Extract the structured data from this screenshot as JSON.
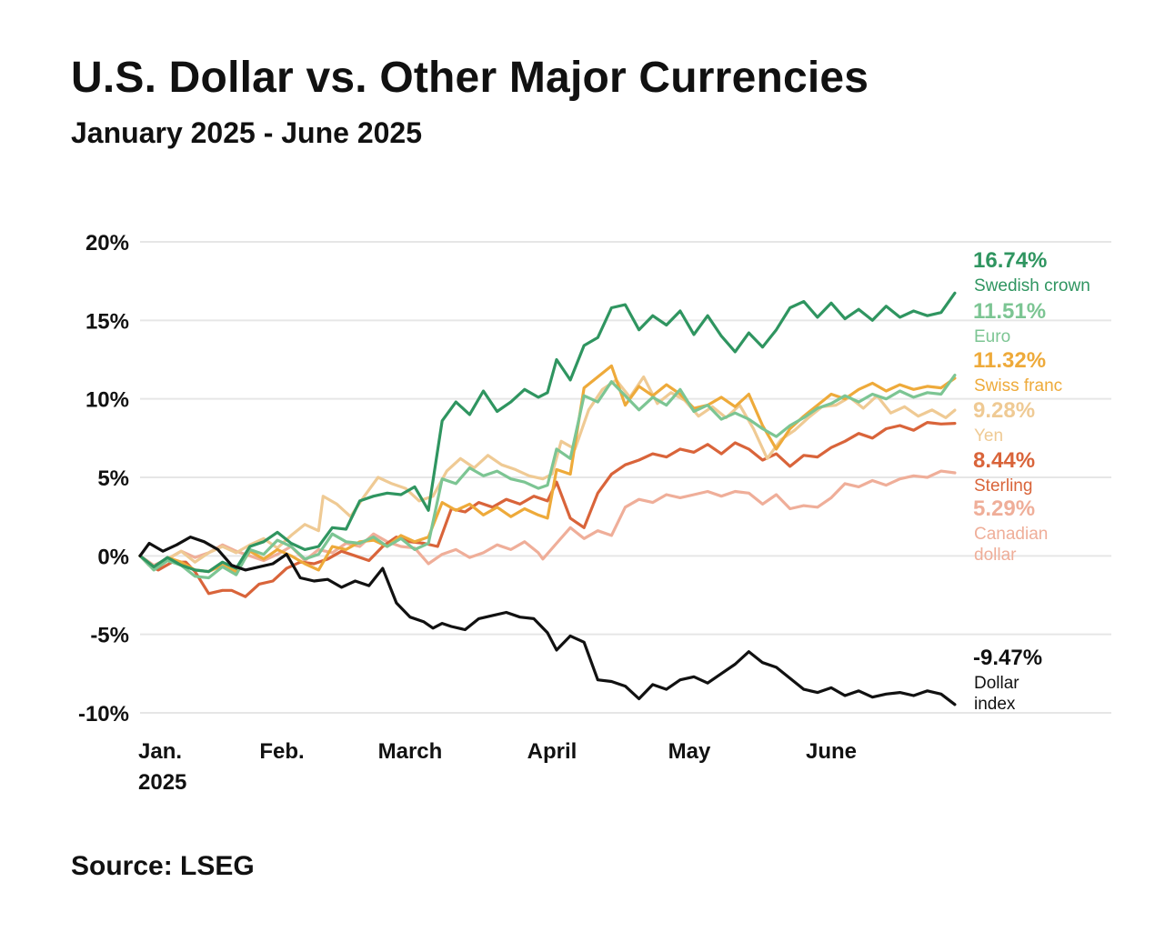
{
  "header": {
    "title": "U.S. Dollar vs. Other Major Currencies",
    "subtitle": "January 2025 - June 2025"
  },
  "footer": {
    "source": "Source: LSEG"
  },
  "chart_data": {
    "type": "line",
    "title": "U.S. Dollar vs. Other Major Currencies",
    "subtitle": "January 2025 - June 2025",
    "xlabel": "",
    "ylabel": "",
    "ylim": [
      -10,
      20
    ],
    "yticks": [
      20,
      15,
      10,
      5,
      0,
      -5,
      -10
    ],
    "ytick_labels": [
      "20%",
      "15%",
      "10%",
      "5%",
      "0%",
      "-5%",
      "-10%"
    ],
    "xlim": [
      0,
      180
    ],
    "xticks": [
      {
        "x": 0,
        "lines": [
          "Jan.",
          "2025"
        ]
      },
      {
        "x": 31,
        "lines": [
          "Feb."
        ]
      },
      {
        "x": 59,
        "lines": [
          "March"
        ]
      },
      {
        "x": 90,
        "lines": [
          "April"
        ]
      },
      {
        "x": 120,
        "lines": [
          "May"
        ]
      },
      {
        "x": 151,
        "lines": [
          "June"
        ]
      }
    ],
    "grid": true,
    "x_unit": "days since Jan. 1, 2025",
    "series": [
      {
        "name": "Canadian dollar",
        "name_lines": [
          "Canadian",
          "dollar"
        ],
        "end_label": "5.29%",
        "color": "#efae99",
        "x": [
          0,
          3,
          6,
          9,
          12,
          15,
          18,
          21,
          24,
          27,
          30,
          33,
          36,
          39,
          42,
          45,
          48,
          51,
          54,
          57,
          60,
          63,
          66,
          69,
          72,
          75,
          78,
          81,
          84,
          87,
          88,
          91,
          94,
          97,
          100,
          103,
          106,
          109,
          112,
          115,
          118,
          121,
          124,
          127,
          130,
          133,
          136,
          139,
          142,
          145,
          148,
          151,
          154,
          157,
          160,
          163,
          166,
          169,
          172,
          175,
          178
        ],
        "y": [
          0.0,
          -0.6,
          -0.2,
          0.3,
          -0.1,
          0.2,
          0.7,
          0.3,
          0.0,
          -0.3,
          0.1,
          0.6,
          -0.3,
          0.4,
          0.2,
          0.8,
          0.6,
          1.4,
          0.9,
          0.6,
          0.5,
          -0.5,
          0.1,
          0.4,
          -0.1,
          0.2,
          0.7,
          0.4,
          0.9,
          0.2,
          -0.2,
          0.8,
          1.8,
          1.1,
          1.6,
          1.3,
          3.1,
          3.6,
          3.4,
          3.9,
          3.7,
          3.9,
          4.1,
          3.8,
          4.1,
          4.0,
          3.3,
          3.9,
          3.0,
          3.2,
          3.1,
          3.7,
          4.6,
          4.4,
          4.8,
          4.5,
          4.9,
          5.1,
          5.0,
          5.4,
          5.29
        ]
      },
      {
        "name": "Sterling",
        "name_lines": [
          "Sterling"
        ],
        "end_label": "8.44%",
        "color": "#d9643a",
        "x": [
          0,
          2,
          4,
          7,
          10,
          12,
          15,
          18,
          20,
          23,
          26,
          29,
          32,
          35,
          38,
          41,
          44,
          47,
          50,
          53,
          56,
          59,
          62,
          65,
          68,
          71,
          74,
          77,
          80,
          83,
          86,
          89,
          91,
          94,
          97,
          100,
          103,
          106,
          109,
          112,
          115,
          118,
          121,
          124,
          127,
          130,
          133,
          136,
          139,
          142,
          145,
          148,
          151,
          154,
          157,
          160,
          163,
          166,
          169,
          172,
          175,
          178
        ],
        "y": [
          0.0,
          -0.6,
          -0.9,
          -0.4,
          -0.4,
          -1.0,
          -2.4,
          -2.2,
          -2.2,
          -2.6,
          -1.8,
          -1.6,
          -0.8,
          -0.4,
          -0.5,
          -0.2,
          0.3,
          0.0,
          -0.3,
          0.6,
          1.2,
          0.9,
          0.8,
          0.6,
          3.0,
          2.8,
          3.4,
          3.1,
          3.6,
          3.3,
          3.8,
          3.5,
          4.7,
          2.4,
          1.8,
          4.0,
          5.2,
          5.8,
          6.1,
          6.5,
          6.3,
          6.8,
          6.6,
          7.1,
          6.5,
          7.2,
          6.8,
          6.1,
          6.5,
          5.7,
          6.4,
          6.3,
          6.9,
          7.3,
          7.8,
          7.5,
          8.1,
          8.3,
          8.0,
          8.5,
          8.4,
          8.44
        ]
      },
      {
        "name": "Yen",
        "name_lines": [
          "Yen"
        ],
        "end_label": "9.28%",
        "color": "#efca94",
        "x": [
          0,
          3,
          6,
          9,
          12,
          15,
          18,
          21,
          24,
          27,
          30,
          33,
          36,
          39,
          40,
          43,
          46,
          49,
          52,
          55,
          58,
          61,
          64,
          67,
          70,
          73,
          76,
          79,
          82,
          85,
          88,
          90,
          92,
          95,
          98,
          101,
          104,
          107,
          110,
          113,
          116,
          119,
          122,
          125,
          128,
          131,
          134,
          137,
          140,
          143,
          146,
          149,
          152,
          155,
          158,
          161,
          164,
          167,
          170,
          173,
          176,
          178
        ],
        "y": [
          0.0,
          -0.7,
          -0.2,
          0.3,
          -0.4,
          0.2,
          0.6,
          0.2,
          0.7,
          1.1,
          0.5,
          1.3,
          2.0,
          1.6,
          3.8,
          3.3,
          2.5,
          3.8,
          5.0,
          4.6,
          4.3,
          3.5,
          3.8,
          5.4,
          6.2,
          5.6,
          6.4,
          5.8,
          5.5,
          5.1,
          4.9,
          5.2,
          7.3,
          6.8,
          9.3,
          10.6,
          11.2,
          10.1,
          11.4,
          9.7,
          10.4,
          9.9,
          8.9,
          9.5,
          8.8,
          9.6,
          8.1,
          6.2,
          7.4,
          8.0,
          8.8,
          9.5,
          9.6,
          10.1,
          9.4,
          10.2,
          9.1,
          9.5,
          8.9,
          9.3,
          8.8,
          9.28
        ]
      },
      {
        "name": "Swiss franc",
        "name_lines": [
          "Swiss franc"
        ],
        "end_label": "11.32%",
        "color": "#eeaa3a",
        "x": [
          0,
          3,
          6,
          9,
          12,
          15,
          18,
          21,
          24,
          27,
          30,
          33,
          36,
          39,
          42,
          45,
          48,
          51,
          54,
          57,
          60,
          63,
          66,
          69,
          72,
          75,
          78,
          81,
          84,
          87,
          89,
          91,
          94,
          97,
          100,
          103,
          106,
          109,
          112,
          115,
          118,
          121,
          124,
          127,
          130,
          133,
          136,
          139,
          142,
          145,
          148,
          151,
          154,
          157,
          160,
          163,
          166,
          169,
          172,
          175,
          178
        ],
        "y": [
          0.0,
          -0.8,
          -0.1,
          -0.4,
          -0.9,
          -1.0,
          -0.6,
          -1.0,
          0.3,
          -0.2,
          0.4,
          0.0,
          -0.5,
          -0.9,
          0.6,
          0.4,
          0.9,
          1.0,
          0.6,
          1.3,
          0.9,
          1.2,
          3.4,
          2.9,
          3.3,
          2.6,
          3.1,
          2.5,
          3.0,
          2.6,
          2.4,
          5.5,
          5.2,
          10.7,
          11.4,
          12.1,
          9.6,
          10.8,
          10.2,
          10.9,
          10.3,
          9.4,
          9.6,
          10.1,
          9.5,
          10.3,
          8.3,
          6.8,
          8.1,
          8.9,
          9.6,
          10.3,
          10.0,
          10.6,
          11.0,
          10.5,
          10.9,
          10.6,
          10.8,
          10.7,
          11.32
        ]
      },
      {
        "name": "Euro",
        "name_lines": [
          "Euro"
        ],
        "end_label": "11.51%",
        "color": "#7cc593",
        "x": [
          0,
          3,
          6,
          9,
          12,
          15,
          18,
          21,
          24,
          27,
          30,
          33,
          36,
          39,
          42,
          45,
          48,
          51,
          54,
          57,
          60,
          63,
          66,
          69,
          72,
          75,
          78,
          81,
          84,
          87,
          89,
          91,
          94,
          97,
          100,
          103,
          106,
          109,
          112,
          115,
          118,
          121,
          124,
          127,
          130,
          133,
          136,
          139,
          142,
          145,
          148,
          151,
          154,
          157,
          160,
          163,
          166,
          169,
          172,
          175,
          178
        ],
        "y": [
          0.0,
          -0.9,
          -0.3,
          -0.6,
          -1.3,
          -1.4,
          -0.7,
          -1.2,
          0.4,
          0.1,
          1.0,
          0.6,
          -0.2,
          0.1,
          1.4,
          0.9,
          0.8,
          1.2,
          0.6,
          1.1,
          0.4,
          0.8,
          4.9,
          4.6,
          5.6,
          5.1,
          5.4,
          4.9,
          4.7,
          4.3,
          4.5,
          6.8,
          6.2,
          10.2,
          9.8,
          11.1,
          10.2,
          9.3,
          10.1,
          9.6,
          10.6,
          9.2,
          9.6,
          8.7,
          9.1,
          8.7,
          8.1,
          7.6,
          8.3,
          8.8,
          9.4,
          9.7,
          10.2,
          9.8,
          10.3,
          10.0,
          10.5,
          10.1,
          10.4,
          10.3,
          11.51
        ]
      },
      {
        "name": "Swedish crown",
        "name_lines": [
          "Swedish crown"
        ],
        "end_label": "16.74%",
        "color": "#2f9560",
        "x": [
          0,
          3,
          6,
          9,
          12,
          15,
          18,
          21,
          24,
          27,
          30,
          33,
          36,
          39,
          42,
          45,
          48,
          51,
          54,
          57,
          60,
          63,
          66,
          69,
          72,
          75,
          78,
          81,
          84,
          87,
          89,
          91,
          94,
          97,
          100,
          103,
          106,
          109,
          112,
          115,
          118,
          121,
          124,
          127,
          130,
          133,
          136,
          139,
          142,
          145,
          148,
          151,
          154,
          157,
          160,
          163,
          166,
          169,
          172,
          175,
          178
        ],
        "y": [
          0.0,
          -0.7,
          -0.1,
          -0.6,
          -0.9,
          -1.0,
          -0.4,
          -0.8,
          0.6,
          0.9,
          1.5,
          0.8,
          0.4,
          0.6,
          1.8,
          1.7,
          3.5,
          3.8,
          4.0,
          3.9,
          4.4,
          2.9,
          8.6,
          9.8,
          9.0,
          10.5,
          9.2,
          9.8,
          10.6,
          10.1,
          10.4,
          12.5,
          11.2,
          13.4,
          13.9,
          15.8,
          16.0,
          14.4,
          15.3,
          14.7,
          15.6,
          14.1,
          15.3,
          14.0,
          13.0,
          14.2,
          13.3,
          14.4,
          15.8,
          16.2,
          15.2,
          16.1,
          15.1,
          15.7,
          15.0,
          15.9,
          15.2,
          15.6,
          15.3,
          15.5,
          16.74
        ]
      },
      {
        "name": "Dollar index",
        "name_lines": [
          "Dollar",
          "index"
        ],
        "end_label": "-9.47%",
        "color": "#111111",
        "x": [
          0,
          2,
          5,
          8,
          11,
          14,
          17,
          20,
          23,
          26,
          29,
          32,
          35,
          38,
          41,
          44,
          47,
          50,
          53,
          56,
          59,
          62,
          64,
          66,
          68,
          71,
          74,
          77,
          80,
          83,
          86,
          89,
          91,
          94,
          97,
          100,
          103,
          106,
          109,
          112,
          115,
          118,
          121,
          124,
          127,
          130,
          133,
          136,
          139,
          142,
          145,
          148,
          151,
          154,
          157,
          160,
          163,
          166,
          169,
          172,
          175,
          178
        ],
        "y": [
          0.0,
          0.8,
          0.3,
          0.7,
          1.2,
          0.9,
          0.4,
          -0.6,
          -0.9,
          -0.7,
          -0.5,
          0.1,
          -1.4,
          -1.6,
          -1.5,
          -2.0,
          -1.6,
          -1.9,
          -0.8,
          -3.0,
          -3.9,
          -4.2,
          -4.6,
          -4.3,
          -4.5,
          -4.7,
          -4.0,
          -3.8,
          -3.6,
          -3.9,
          -4.0,
          -4.9,
          -6.0,
          -5.1,
          -5.5,
          -7.9,
          -8.0,
          -8.3,
          -9.1,
          -8.2,
          -8.5,
          -7.9,
          -7.7,
          -8.1,
          -7.5,
          -6.9,
          -6.1,
          -6.8,
          -7.1,
          -7.8,
          -8.5,
          -8.7,
          -8.4,
          -8.9,
          -8.6,
          -9.0,
          -8.8,
          -8.7,
          -8.9,
          -8.6,
          -8.8,
          -9.47
        ]
      }
    ]
  }
}
